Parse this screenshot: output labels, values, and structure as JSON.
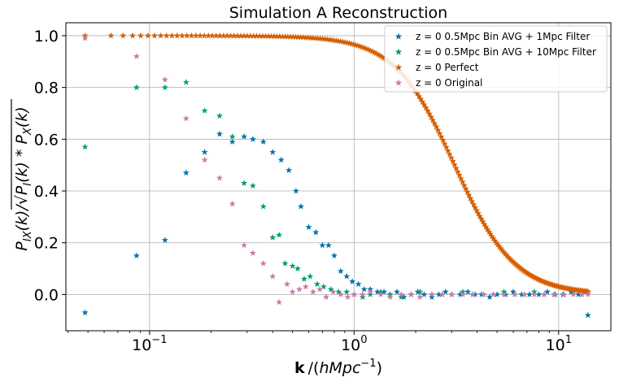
{
  "chart_data": {
    "type": "scatter",
    "title": "Simulation A Reconstruction",
    "xlabel": "k /(hMpc^-1)",
    "ylabel": "P_IX(k)/sqrt(P_I(k)*P_X(k))",
    "xscale": "log",
    "xlim": [
      0.039,
      18
    ],
    "ylim": [
      -0.14,
      1.05
    ],
    "grid": true,
    "legend_position": "top-right",
    "x_ticks": [
      {
        "value": 0.1,
        "base": "10",
        "exp": "−1"
      },
      {
        "value": 1,
        "base": "10",
        "exp": "0"
      },
      {
        "value": 10,
        "base": "10",
        "exp": "1"
      }
    ],
    "y_ticks": [
      {
        "value": 0.0,
        "label": "0.0"
      },
      {
        "value": 0.2,
        "label": "0.2"
      },
      {
        "value": 0.4,
        "label": "0.4"
      },
      {
        "value": 0.6,
        "label": "0.6"
      },
      {
        "value": 0.8,
        "label": "0.8"
      },
      {
        "value": 1.0,
        "label": "1.0"
      }
    ],
    "series": [
      {
        "name": "z = 0  0.5Mpc Bin AVG + 1Mpc Filter",
        "color": "#0072b2",
        "points": [
          [
            0.0484,
            -0.07
          ],
          [
            0.0864,
            0.15
          ],
          [
            0.119,
            0.21
          ],
          [
            0.151,
            0.47
          ],
          [
            0.186,
            0.55
          ],
          [
            0.22,
            0.62
          ],
          [
            0.254,
            0.59
          ],
          [
            0.29,
            0.61
          ],
          [
            0.32,
            0.6
          ],
          [
            0.36,
            0.59
          ],
          [
            0.4,
            0.55
          ],
          [
            0.44,
            0.52
          ],
          [
            0.48,
            0.48
          ],
          [
            0.52,
            0.4
          ],
          [
            0.55,
            0.34
          ],
          [
            0.6,
            0.26
          ],
          [
            0.65,
            0.24
          ],
          [
            0.7,
            0.19
          ],
          [
            0.75,
            0.19
          ],
          [
            0.8,
            0.15
          ],
          [
            0.86,
            0.09
          ],
          [
            0.92,
            0.07
          ],
          [
            0.98,
            0.05
          ],
          [
            1.05,
            0.04
          ],
          [
            1.12,
            0.02
          ],
          [
            1.2,
            0.02
          ],
          [
            1.3,
            0.01
          ],
          [
            1.4,
            0.01
          ],
          [
            1.5,
            0.0
          ],
          [
            1.62,
            0.01
          ],
          [
            1.75,
            -0.01
          ],
          [
            1.9,
            0.0
          ],
          [
            2.05,
            0.01
          ],
          [
            2.2,
            0.0
          ],
          [
            2.4,
            -0.01
          ],
          [
            2.6,
            0.0
          ],
          [
            2.8,
            0.01
          ],
          [
            3.0,
            0.0
          ],
          [
            3.3,
            0.0
          ],
          [
            3.6,
            0.01
          ],
          [
            3.9,
            0.0
          ],
          [
            4.2,
            0.0
          ],
          [
            4.6,
            -0.01
          ],
          [
            5.0,
            0.0
          ],
          [
            5.5,
            0.0
          ],
          [
            6.0,
            0.01
          ],
          [
            6.6,
            0.0
          ],
          [
            7.2,
            0.0
          ],
          [
            8.0,
            0.0
          ],
          [
            8.8,
            0.01
          ],
          [
            9.6,
            0.0
          ],
          [
            10.5,
            0.0
          ],
          [
            11.5,
            0.01
          ],
          [
            12.5,
            0.0
          ],
          [
            13.3,
            0.01
          ],
          [
            13.9,
            -0.08
          ]
        ]
      },
      {
        "name": "z = 0  0.5Mpc Bin AVG + 10Mpc Filter",
        "color": "#009e73",
        "points": [
          [
            0.0484,
            0.57
          ],
          [
            0.0864,
            0.8
          ],
          [
            0.119,
            0.8
          ],
          [
            0.151,
            0.82
          ],
          [
            0.186,
            0.71
          ],
          [
            0.22,
            0.69
          ],
          [
            0.254,
            0.61
          ],
          [
            0.29,
            0.43
          ],
          [
            0.32,
            0.42
          ],
          [
            0.36,
            0.34
          ],
          [
            0.4,
            0.22
          ],
          [
            0.43,
            0.23
          ],
          [
            0.46,
            0.12
          ],
          [
            0.5,
            0.11
          ],
          [
            0.53,
            0.1
          ],
          [
            0.57,
            0.06
          ],
          [
            0.61,
            0.07
          ],
          [
            0.66,
            0.04
          ],
          [
            0.71,
            0.03
          ],
          [
            0.77,
            0.02
          ],
          [
            0.84,
            0.01
          ],
          [
            0.92,
            0.01
          ],
          [
            1.0,
            0.0
          ],
          [
            1.1,
            -0.01
          ],
          [
            1.2,
            0.0
          ],
          [
            1.35,
            0.01
          ],
          [
            1.5,
            0.0
          ],
          [
            1.7,
            -0.01
          ],
          [
            1.9,
            0.0
          ],
          [
            2.1,
            0.01
          ],
          [
            2.4,
            0.0
          ],
          [
            2.7,
            0.0
          ],
          [
            3.0,
            0.0
          ],
          [
            3.4,
            0.01
          ],
          [
            3.8,
            0.0
          ],
          [
            4.3,
            0.0
          ],
          [
            4.8,
            0.0
          ],
          [
            5.4,
            0.01
          ],
          [
            6.1,
            0.0
          ],
          [
            6.8,
            0.0
          ],
          [
            7.6,
            0.01
          ],
          [
            8.5,
            0.0
          ],
          [
            9.5,
            0.0
          ],
          [
            10.6,
            0.0
          ],
          [
            11.8,
            0.01
          ],
          [
            13.0,
            0.0
          ],
          [
            13.9,
            0.01
          ]
        ]
      },
      {
        "name": "z = 0  Perfect",
        "color": "#d55e00",
        "model": "logistic",
        "k_mid": 3.1,
        "slope": 2.95,
        "k_range": [
          0.0484,
          13.9
        ],
        "n_points": 220
      },
      {
        "name": "z = 0  Original",
        "color": "#cc79a7",
        "points": [
          [
            0.0484,
            0.99
          ],
          [
            0.0864,
            0.92
          ],
          [
            0.119,
            0.83
          ],
          [
            0.151,
            0.68
          ],
          [
            0.186,
            0.52
          ],
          [
            0.22,
            0.45
          ],
          [
            0.254,
            0.35
          ],
          [
            0.29,
            0.19
          ],
          [
            0.32,
            0.16
          ],
          [
            0.36,
            0.12
          ],
          [
            0.4,
            0.07
          ],
          [
            0.43,
            -0.03
          ],
          [
            0.47,
            0.04
          ],
          [
            0.5,
            0.01
          ],
          [
            0.54,
            0.02
          ],
          [
            0.58,
            0.03
          ],
          [
            0.63,
            0.01
          ],
          [
            0.68,
            0.02
          ],
          [
            0.73,
            -0.01
          ],
          [
            0.79,
            0.01
          ],
          [
            0.86,
            0.0
          ],
          [
            0.93,
            -0.01
          ],
          [
            1.0,
            0.0
          ],
          [
            1.1,
            0.0
          ],
          [
            1.2,
            0.01
          ],
          [
            1.35,
            0.0
          ],
          [
            1.5,
            -0.01
          ],
          [
            1.7,
            0.0
          ],
          [
            1.9,
            0.0
          ],
          [
            2.1,
            -0.01
          ],
          [
            2.4,
            0.0
          ],
          [
            2.7,
            0.0
          ],
          [
            3.0,
            0.0
          ],
          [
            3.4,
            0.0
          ],
          [
            3.8,
            0.0
          ],
          [
            4.3,
            0.0
          ],
          [
            4.8,
            0.0
          ],
          [
            5.4,
            0.0
          ],
          [
            6.1,
            0.0
          ],
          [
            6.8,
            0.0
          ],
          [
            7.6,
            0.0
          ],
          [
            8.5,
            0.0
          ],
          [
            9.5,
            0.0
          ],
          [
            10.6,
            0.0
          ],
          [
            11.8,
            0.0
          ],
          [
            13.0,
            0.0
          ],
          [
            13.9,
            0.0
          ]
        ]
      }
    ]
  }
}
